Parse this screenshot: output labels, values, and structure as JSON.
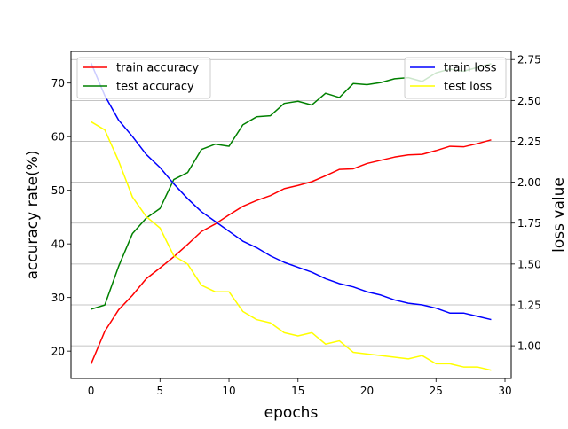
{
  "chart_data": {
    "type": "line",
    "xlabel": "epochs",
    "ylabel_left": "accuracy rate(%)",
    "ylabel_right": "loss value",
    "xlim": [
      -1.45,
      30.45
    ],
    "ylim_left": [
      14.9,
      75.9
    ],
    "ylim_right": [
      0.8,
      2.8
    ],
    "xticks": [
      0,
      5,
      10,
      15,
      20,
      25,
      30
    ],
    "yticks_left": [
      20,
      30,
      40,
      50,
      60,
      70
    ],
    "yticks_right": [
      1.0,
      1.25,
      1.5,
      1.75,
      2.0,
      2.25,
      2.5,
      2.75
    ],
    "ytick_labels_right": [
      "1.00",
      "1.25",
      "1.50",
      "1.75",
      "2.00",
      "2.25",
      "2.50",
      "2.75"
    ],
    "grid": "right-axis horizontal lines",
    "x": [
      0,
      1,
      2,
      3,
      4,
      5,
      6,
      7,
      8,
      9,
      10,
      11,
      12,
      13,
      14,
      15,
      16,
      17,
      18,
      19,
      20,
      21,
      22,
      23,
      24,
      25,
      26,
      27,
      28,
      29
    ],
    "left_series": [
      {
        "name": "train accuracy",
        "color": "#ff0000",
        "values": [
          17.6,
          23.7,
          27.7,
          30.4,
          33.5,
          35.5,
          37.6,
          39.9,
          42.3,
          43.7,
          45.4,
          47.0,
          48.1,
          49.0,
          50.3,
          50.9,
          51.6,
          52.7,
          53.9,
          54.0,
          55.0,
          55.6,
          56.2,
          56.6,
          56.7,
          57.4,
          58.2,
          58.1,
          58.7,
          59.4
        ]
      },
      {
        "name": "test accuracy",
        "color": "#008000",
        "values": [
          27.8,
          28.6,
          35.8,
          41.9,
          44.8,
          46.6,
          52.0,
          53.3,
          57.6,
          58.6,
          58.2,
          62.2,
          63.7,
          63.9,
          66.2,
          66.6,
          65.9,
          68.1,
          67.3,
          69.9,
          69.7,
          70.1,
          70.8,
          71.0,
          70.3,
          71.9,
          72.6,
          72.2,
          72.9,
          73.6
        ]
      }
    ],
    "right_series": [
      {
        "name": "train loss",
        "color": "#0000ff",
        "values": [
          2.73,
          2.53,
          2.38,
          2.28,
          2.17,
          2.09,
          1.99,
          1.9,
          1.82,
          1.76,
          1.7,
          1.64,
          1.6,
          1.55,
          1.51,
          1.48,
          1.45,
          1.41,
          1.38,
          1.36,
          1.33,
          1.31,
          1.28,
          1.26,
          1.25,
          1.23,
          1.2,
          1.2,
          1.18,
          1.16
        ]
      },
      {
        "name": "test loss",
        "color": "#ffff00",
        "values": [
          2.37,
          2.32,
          2.13,
          1.91,
          1.79,
          1.72,
          1.55,
          1.5,
          1.37,
          1.33,
          1.33,
          1.21,
          1.16,
          1.14,
          1.08,
          1.06,
          1.08,
          1.01,
          1.03,
          0.96,
          0.95,
          0.94,
          0.93,
          0.92,
          0.94,
          0.89,
          0.89,
          0.87,
          0.87,
          0.85
        ]
      }
    ],
    "legend_left": "top-left",
    "legend_right": "top-right"
  }
}
